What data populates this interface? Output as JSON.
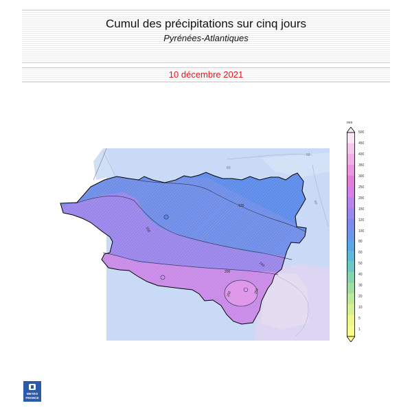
{
  "header": {
    "title": "Cumul des précipitations sur cinq jours",
    "subtitle": "Pyrénées-Atlantiques",
    "date": "10 décembre 2021"
  },
  "legend": {
    "unit": "mm",
    "ticks": [
      "500",
      "450",
      "400",
      "350",
      "300",
      "250",
      "200",
      "150",
      "120",
      "100",
      "80",
      "60",
      "50",
      "40",
      "30",
      "20",
      "10",
      "5",
      "1"
    ],
    "colors": [
      "#f9e7f4",
      "#f4c8ec",
      "#eeaee6",
      "#e996df",
      "#e07ed8",
      "#d680e6",
      "#b884ea",
      "#9a88ea",
      "#7f8aee",
      "#6c96ec",
      "#5aa6e6",
      "#60b8d8",
      "#6cc8c4",
      "#86d4ae",
      "#a0dea0",
      "#bee89a",
      "#d8f094",
      "#eef68e",
      "#fbfb8c"
    ]
  },
  "map": {
    "contour_labels": [
      "120",
      "150",
      "150",
      "200",
      "250",
      "250",
      "60",
      "60",
      "60"
    ]
  },
  "logo": {
    "line1": "METEO",
    "line2": "FRANCE"
  }
}
